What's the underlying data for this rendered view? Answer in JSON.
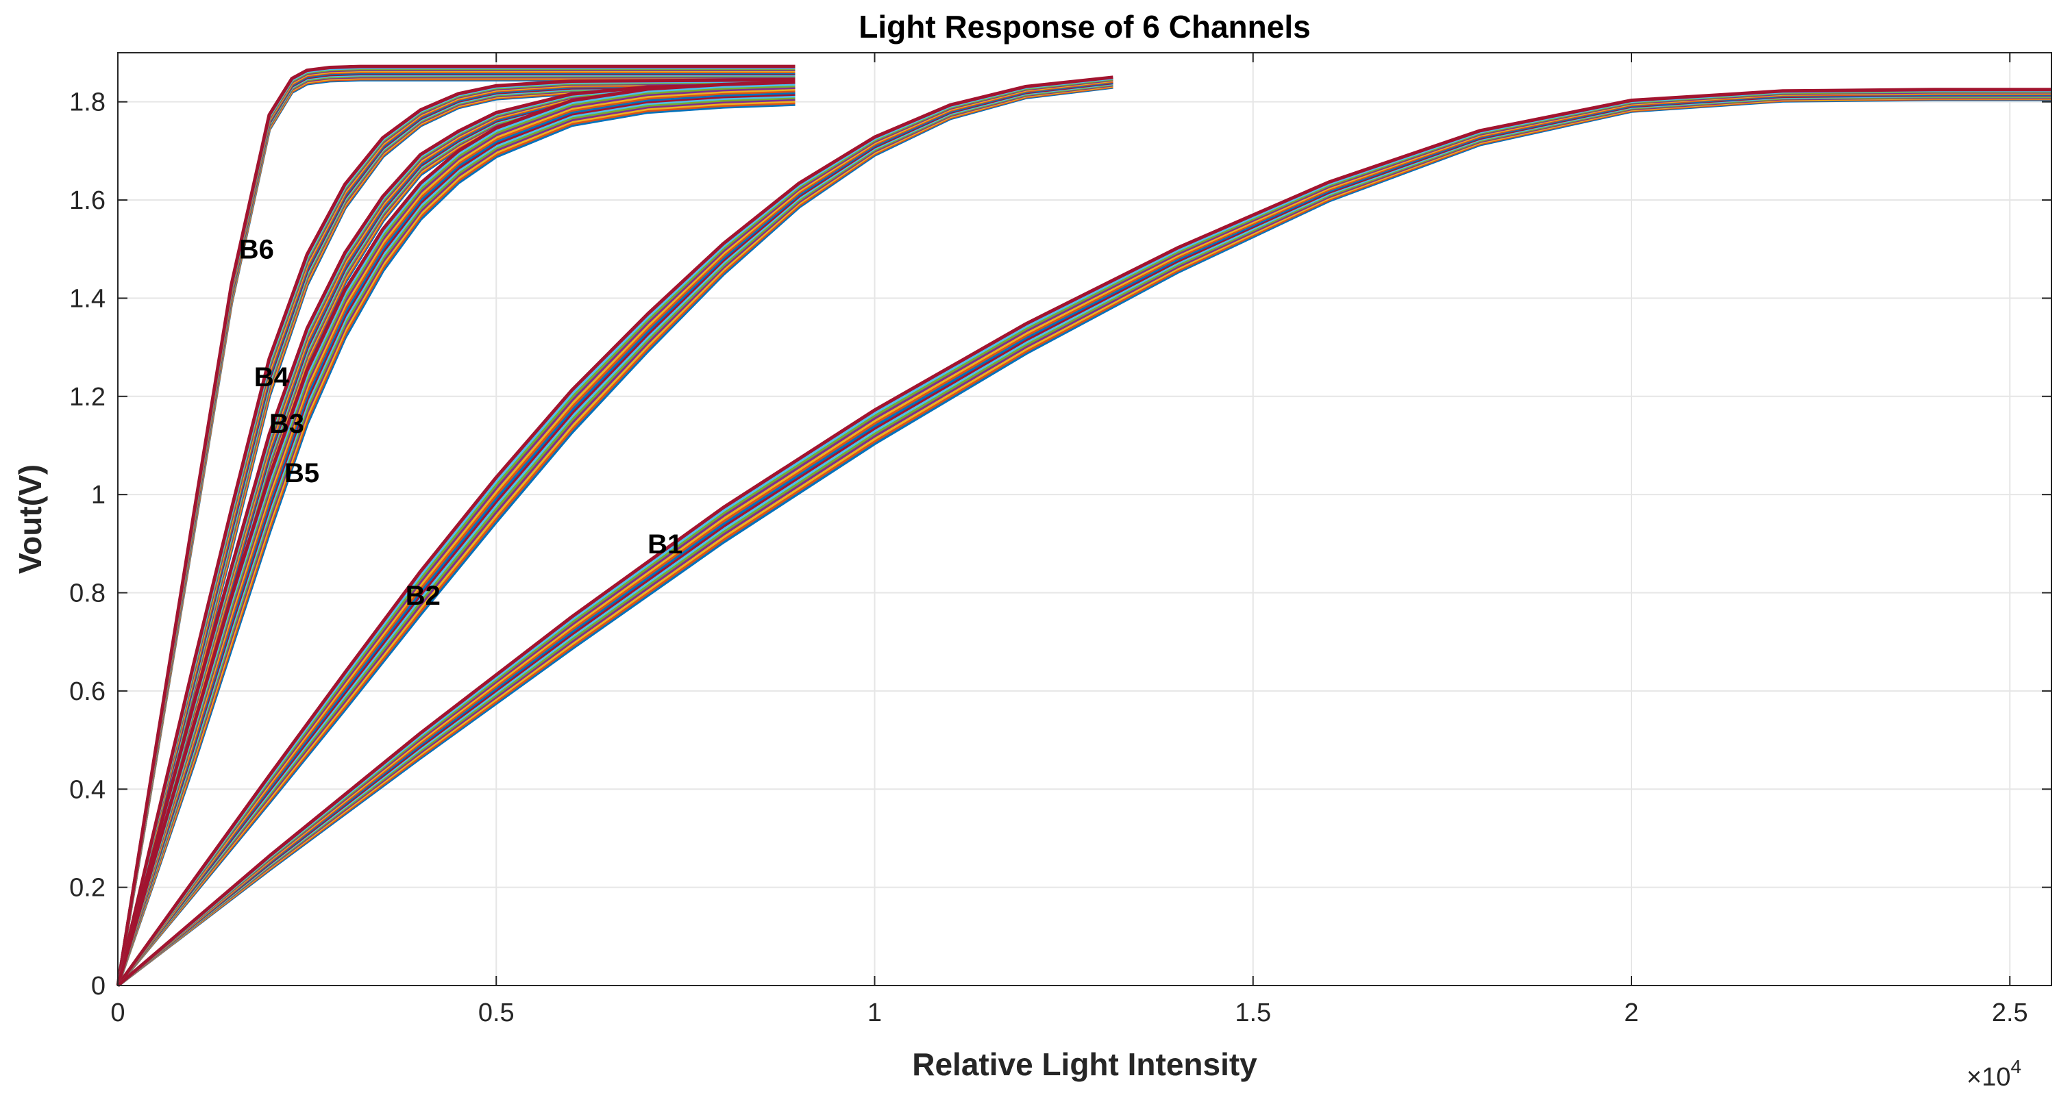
{
  "chart_data": {
    "type": "line",
    "title": "Light Response of 6 Channels",
    "xlabel": "Relative Light Intensity",
    "ylabel": "Vout(V)",
    "x_exponent_base": "×10",
    "x_exponent_power": "4",
    "xlim": [
      0,
      2.555
    ],
    "ylim": [
      0,
      1.9
    ],
    "xticks": [
      0,
      0.5,
      1,
      1.5,
      2,
      2.5
    ],
    "xtick_labels": [
      "0",
      "0.5",
      "1",
      "1.5",
      "2",
      "2.5"
    ],
    "yticks": [
      0,
      0.2,
      0.4,
      0.6,
      0.8,
      1.0,
      1.2,
      1.4,
      1.6,
      1.8
    ],
    "ytick_labels": [
      "0",
      "0.2",
      "0.4",
      "0.6",
      "0.8",
      "1",
      "1.2",
      "1.4",
      "1.6",
      "1.8"
    ],
    "grid": true,
    "line_colors": [
      "#0072BD",
      "#D95319",
      "#EDB120",
      "#7E2F8E",
      "#77AC30",
      "#4DBEEE",
      "#A2142F"
    ],
    "groups": [
      {
        "name": "B6",
        "label_at": [
          0.16,
          1.5
        ],
        "x_end": 0.895,
        "sat_min": 1.845,
        "sat_max": 1.872,
        "x": [
          0,
          0.05,
          0.1,
          0.15,
          0.2,
          0.23,
          0.25,
          0.28,
          0.32,
          0.5,
          0.895
        ],
        "y": [
          0,
          0.47,
          0.94,
          1.41,
          1.76,
          1.835,
          1.852,
          1.858,
          1.86,
          1.86,
          1.86
        ],
        "spread": 0.012
      },
      {
        "name": "B4",
        "label_at": [
          0.18,
          1.24
        ],
        "x_end": 0.895,
        "sat_min": 1.82,
        "sat_max": 1.845,
        "x": [
          0,
          0.05,
          0.1,
          0.15,
          0.2,
          0.25,
          0.3,
          0.35,
          0.4,
          0.45,
          0.5,
          0.6,
          0.895
        ],
        "y": [
          0,
          0.31,
          0.62,
          0.93,
          1.24,
          1.46,
          1.61,
          1.71,
          1.77,
          1.805,
          1.822,
          1.832,
          1.835
        ],
        "spread": 0.035
      },
      {
        "name": "B3",
        "label_at": [
          0.2,
          1.145
        ],
        "x_end": 0.895,
        "sat_min": 1.81,
        "sat_max": 1.835,
        "x": [
          0,
          0.05,
          0.1,
          0.15,
          0.2,
          0.25,
          0.3,
          0.35,
          0.4,
          0.45,
          0.5,
          0.6,
          0.7,
          0.895
        ],
        "y": [
          0,
          0.27,
          0.54,
          0.81,
          1.08,
          1.3,
          1.46,
          1.58,
          1.67,
          1.72,
          1.76,
          1.8,
          1.815,
          1.82
        ],
        "spread": 0.035
      },
      {
        "name": "B5",
        "label_at": [
          0.22,
          1.045
        ],
        "x_end": 0.895,
        "sat_min": 1.795,
        "sat_max": 1.84,
        "x": [
          0,
          0.05,
          0.1,
          0.15,
          0.2,
          0.25,
          0.3,
          0.35,
          0.4,
          0.45,
          0.5,
          0.6,
          0.7,
          0.8,
          0.895
        ],
        "y": [
          0,
          0.245,
          0.49,
          0.74,
          0.98,
          1.2,
          1.37,
          1.5,
          1.6,
          1.67,
          1.72,
          1.78,
          1.805,
          1.815,
          1.82
        ],
        "spread": 0.045
      },
      {
        "name": "B2",
        "label_at": [
          0.38,
          0.795
        ],
        "x_end": 1.315,
        "sat_min": 1.83,
        "sat_max": 1.85,
        "x": [
          0,
          0.1,
          0.2,
          0.3,
          0.4,
          0.5,
          0.6,
          0.7,
          0.8,
          0.9,
          1.0,
          1.1,
          1.2,
          1.315
        ],
        "y": [
          0,
          0.2,
          0.4,
          0.6,
          0.8,
          0.99,
          1.17,
          1.33,
          1.48,
          1.61,
          1.71,
          1.78,
          1.82,
          1.84
        ],
        "spread": 0.04
      },
      {
        "name": "B1",
        "label_at": [
          0.7,
          0.9
        ],
        "x_end": 2.555,
        "sat_min": 1.805,
        "sat_max": 1.825,
        "x": [
          0,
          0.2,
          0.4,
          0.6,
          0.8,
          1.0,
          1.2,
          1.4,
          1.6,
          1.8,
          2.0,
          2.2,
          2.4,
          2.555
        ],
        "y": [
          0,
          0.25,
          0.49,
          0.72,
          0.94,
          1.14,
          1.32,
          1.48,
          1.62,
          1.73,
          1.795,
          1.815,
          1.818,
          1.818
        ],
        "spread": 0.03
      }
    ]
  }
}
